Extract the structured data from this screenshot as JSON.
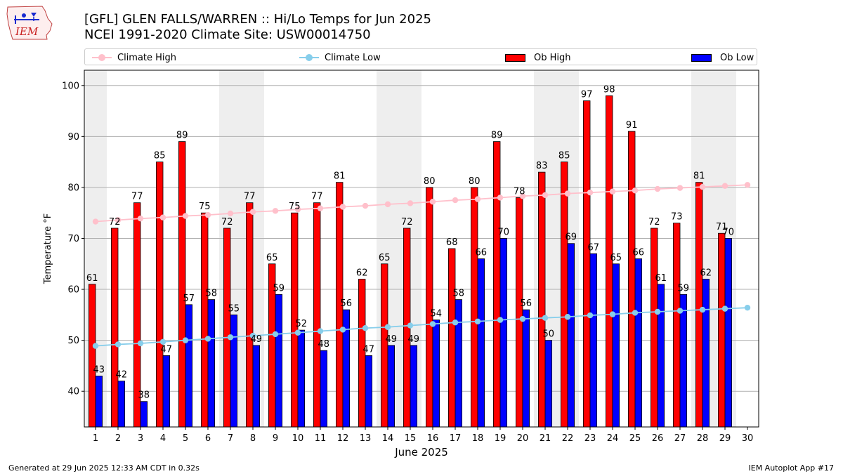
{
  "title_line1": "[GFL] GLEN FALLS/WARREN :: Hi/Lo Temps for Jun 2025",
  "title_line2": "NCEI 1991-2020 Climate Site: USW00014750",
  "logo_text": "IEM",
  "footer_left": "Generated at 29 Jun 2025 12:33 AM CDT in 0.32s",
  "footer_right": "IEM Autoplot App #17",
  "legend": {
    "climate_high": "Climate High",
    "climate_low": "Climate Low",
    "ob_high": "Ob High",
    "ob_low": "Ob Low"
  },
  "colors": {
    "ob_high": "#ff0000",
    "ob_low": "#0000ff",
    "climate_high": "#ffc0cb",
    "climate_low": "#87ceeb",
    "weekend_shade": "#eeeeee",
    "grid": "#b0b0b0"
  },
  "chart_data": {
    "type": "bar",
    "xlabel": "June 2025",
    "ylabel": "Temperature °F",
    "xlim": [
      0.5,
      30.5
    ],
    "ylim": [
      33,
      103
    ],
    "yticks": [
      40,
      50,
      60,
      70,
      80,
      90,
      100
    ],
    "categories": [
      "1",
      "2",
      "3",
      "4",
      "5",
      "6",
      "7",
      "8",
      "9",
      "10",
      "11",
      "12",
      "13",
      "14",
      "15",
      "16",
      "17",
      "18",
      "19",
      "20",
      "21",
      "22",
      "23",
      "24",
      "25",
      "26",
      "27",
      "28",
      "29",
      "30"
    ],
    "grid": "y",
    "legend_position": "top",
    "shaded_days": [
      1,
      7,
      8,
      14,
      15,
      21,
      22,
      28,
      29
    ],
    "series": [
      {
        "name": "Ob High",
        "kind": "bar",
        "values": [
          61,
          72,
          77,
          85,
          89,
          75,
          72,
          77,
          65,
          75,
          77,
          81,
          62,
          65,
          72,
          80,
          68,
          80,
          89,
          78,
          83,
          85,
          97,
          98,
          91,
          72,
          73,
          81,
          71,
          null
        ]
      },
      {
        "name": "Ob Low",
        "kind": "bar",
        "values": [
          43,
          42,
          38,
          47,
          57,
          58,
          55,
          49,
          59,
          52,
          48,
          56,
          47,
          49,
          49,
          54,
          58,
          66,
          70,
          56,
          50,
          69,
          67,
          65,
          66,
          61,
          59,
          62,
          70,
          null
        ]
      },
      {
        "name": "Climate High",
        "kind": "line",
        "values": [
          73.3,
          73.6,
          73.9,
          74.1,
          74.4,
          74.6,
          74.9,
          75.2,
          75.4,
          75.7,
          75.9,
          76.2,
          76.4,
          76.7,
          76.9,
          77.2,
          77.5,
          77.7,
          78.0,
          78.3,
          78.5,
          78.8,
          79.0,
          79.2,
          79.4,
          79.7,
          79.9,
          80.1,
          80.3,
          80.5
        ]
      },
      {
        "name": "Climate Low",
        "kind": "line",
        "values": [
          48.9,
          49.2,
          49.4,
          49.7,
          50.0,
          50.3,
          50.6,
          50.9,
          51.2,
          51.5,
          51.8,
          52.1,
          52.4,
          52.6,
          52.9,
          53.2,
          53.5,
          53.7,
          54.0,
          54.2,
          54.4,
          54.6,
          54.9,
          55.1,
          55.4,
          55.6,
          55.8,
          56.0,
          56.2,
          56.4
        ]
      }
    ]
  }
}
